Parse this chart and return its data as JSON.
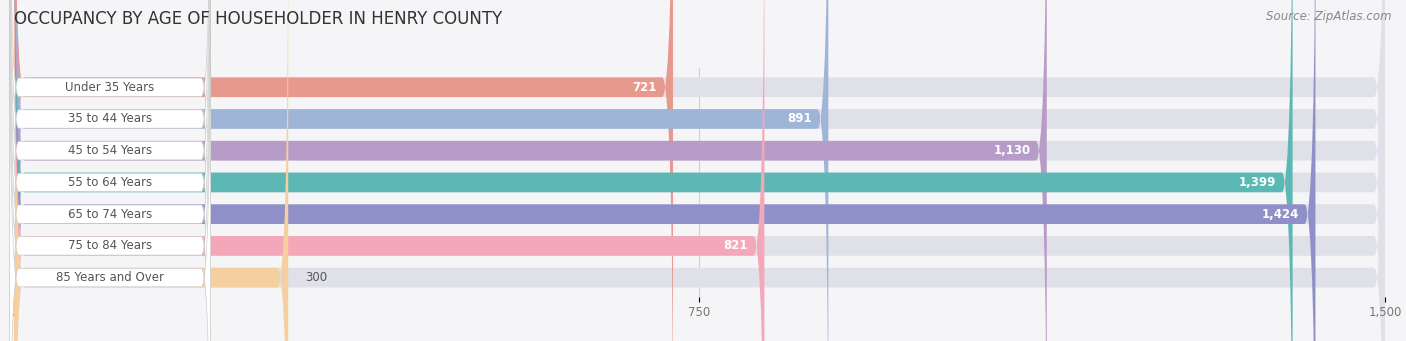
{
  "title": "OCCUPANCY BY AGE OF HOUSEHOLDER IN HENRY COUNTY",
  "source": "Source: ZipAtlas.com",
  "categories": [
    "Under 35 Years",
    "35 to 44 Years",
    "45 to 54 Years",
    "55 to 64 Years",
    "65 to 74 Years",
    "75 to 84 Years",
    "85 Years and Over"
  ],
  "values": [
    721,
    891,
    1130,
    1399,
    1424,
    821,
    300
  ],
  "bar_colors": [
    "#E8998D",
    "#9FB5D8",
    "#B89CC8",
    "#5BB8B4",
    "#9090C8",
    "#F4A7B8",
    "#F5CFA0"
  ],
  "bar_bg_color": "#E0E0E8",
  "xlim": [
    0,
    1500
  ],
  "xticks": [
    0,
    750,
    1500
  ],
  "title_fontsize": 12,
  "source_fontsize": 8.5,
  "label_fontsize": 8.5,
  "value_fontsize": 8.5,
  "background_color": "#F5F5F7",
  "bar_height": 0.62,
  "label_box_color": "#FFFFFF",
  "label_text_color": "#555555",
  "value_inside_color": "#FFFFFF",
  "value_outside_color": "#555555"
}
